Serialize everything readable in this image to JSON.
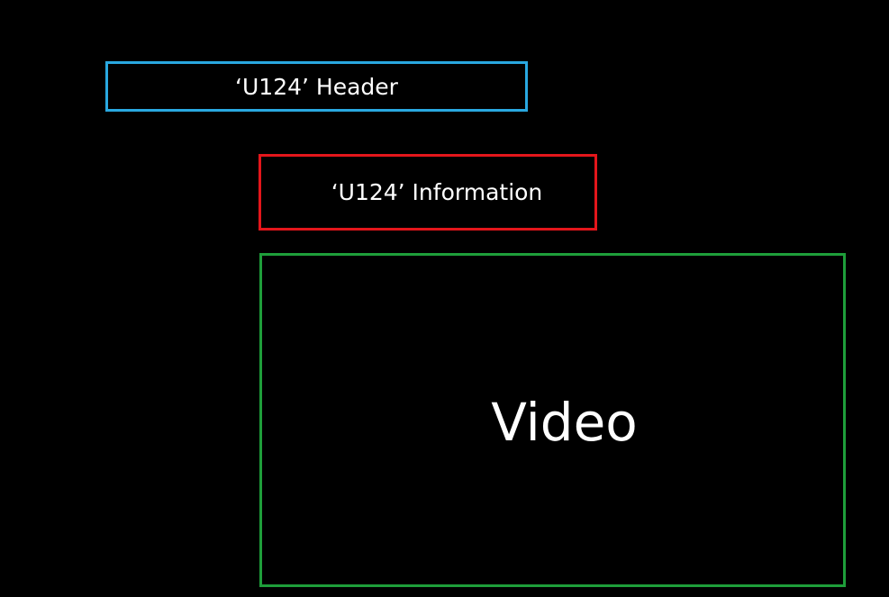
{
  "header_box": {
    "label": "‘U124’ Header",
    "border_color": "#29a8e0"
  },
  "information_box": {
    "label": "‘U124’ Information",
    "border_color": "#e3161b"
  },
  "video_box": {
    "label": "Video",
    "border_color": "#1e9e3a"
  },
  "background_color": "#000000",
  "text_color": "#ffffff"
}
